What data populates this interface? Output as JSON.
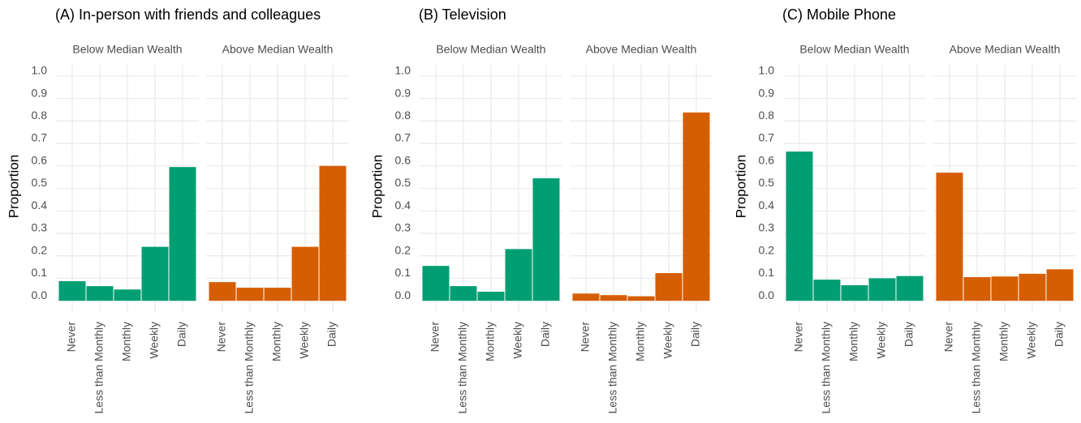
{
  "chart_data": [
    {
      "type": "bar",
      "title": "(A) In-person with friends and colleagues",
      "y_label": "Proportion",
      "categories": [
        "Never",
        "Less than Monthly",
        "Monthly",
        "Weekly",
        "Daily"
      ],
      "ylim": [
        -0.05,
        1.05
      ],
      "yticks": [
        {
          "value": 0,
          "label": "0.0"
        },
        0.1,
        0.2,
        0.3,
        0.4,
        0.5,
        0.6,
        0.7,
        0.8,
        0.9,
        {
          "value": 1,
          "label": "1.0"
        }
      ],
      "grid": true,
      "facets": [
        {
          "name": "Below Median Wealth",
          "color": "#009e73",
          "values": [
            0.087,
            0.065,
            0.05,
            0.24,
            0.595
          ]
        },
        {
          "name": "Above Median Wealth",
          "color": "#d55e00",
          "values": [
            0.083,
            0.058,
            0.058,
            0.24,
            0.6
          ]
        }
      ]
    },
    {
      "type": "bar",
      "title": "(B) Television",
      "y_label": "Proportion",
      "categories": [
        "Never",
        "Less than Monthly",
        "Monthly",
        "Weekly",
        "Daily"
      ],
      "ylim": [
        -0.05,
        1.05
      ],
      "yticks": [
        {
          "value": 0,
          "label": "0.0"
        },
        0.1,
        0.2,
        0.3,
        0.4,
        0.5,
        0.6,
        0.7,
        0.8,
        0.9,
        {
          "value": 1,
          "label": "1.0"
        }
      ],
      "grid": true,
      "facets": [
        {
          "name": "Below Median Wealth",
          "color": "#009e73",
          "values": [
            0.155,
            0.065,
            0.04,
            0.23,
            0.545
          ]
        },
        {
          "name": "Above Median Wealth",
          "color": "#d55e00",
          "values": [
            0.032,
            0.025,
            0.02,
            0.123,
            0.838
          ]
        }
      ]
    },
    {
      "type": "bar",
      "title": "(C) Mobile Phone",
      "y_label": "Proportion",
      "categories": [
        "Never",
        "Less than Monthly",
        "Monthly",
        "Weekly",
        "Daily"
      ],
      "ylim": [
        -0.05,
        1.05
      ],
      "yticks": [
        {
          "value": 0,
          "label": "0.0"
        },
        0.1,
        0.2,
        0.3,
        0.4,
        0.5,
        0.6,
        0.7,
        0.8,
        0.9,
        {
          "value": 1,
          "label": "1.0"
        }
      ],
      "grid": true,
      "facets": [
        {
          "name": "Below Median Wealth",
          "color": "#009e73",
          "values": [
            0.664,
            0.094,
            0.069,
            0.1,
            0.11
          ]
        },
        {
          "name": "Above Median Wealth",
          "color": "#d55e00",
          "values": [
            0.57,
            0.105,
            0.108,
            0.12,
            0.14
          ]
        }
      ]
    }
  ]
}
